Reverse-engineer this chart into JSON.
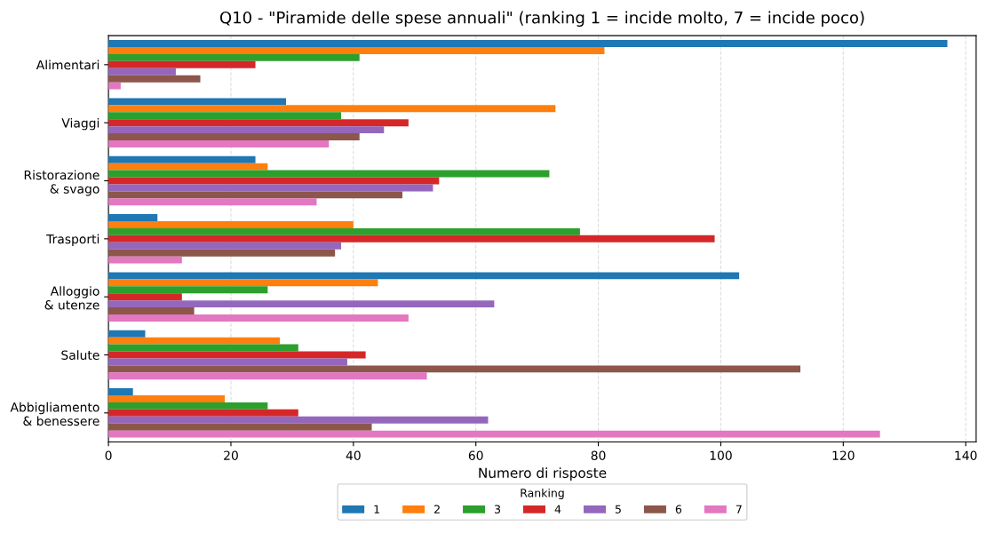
{
  "chart_data": {
    "type": "bar",
    "orientation": "horizontal",
    "title": "Q10 - \"Piramide delle spese annuali\" (ranking 1 = incide molto, 7 = incide poco)",
    "xlabel": "Numero di risposte",
    "legend_title": "Ranking",
    "categories": [
      "Alimentari",
      "Viaggi",
      "Ristorazione\n& svago",
      "Trasporti",
      "Alloggio\n& utenze",
      "Salute",
      "Abbigliamento\n& benessere"
    ],
    "series": [
      {
        "name": "1",
        "color": "#1f77b4",
        "values": [
          137,
          29,
          24,
          8,
          103,
          6,
          4
        ]
      },
      {
        "name": "2",
        "color": "#ff7f0e",
        "values": [
          81,
          73,
          26,
          40,
          44,
          28,
          19
        ]
      },
      {
        "name": "3",
        "color": "#2ca02c",
        "values": [
          41,
          38,
          72,
          77,
          26,
          31,
          26
        ]
      },
      {
        "name": "4",
        "color": "#d62728",
        "values": [
          24,
          49,
          54,
          99,
          12,
          42,
          31
        ]
      },
      {
        "name": "5",
        "color": "#9467bd",
        "values": [
          11,
          45,
          53,
          38,
          63,
          39,
          62
        ]
      },
      {
        "name": "6",
        "color": "#8c564b",
        "values": [
          15,
          41,
          48,
          37,
          14,
          113,
          43
        ]
      },
      {
        "name": "7",
        "color": "#e377c2",
        "values": [
          2,
          36,
          34,
          12,
          49,
          52,
          126
        ]
      }
    ],
    "xlim": [
      0,
      141.7
    ],
    "xticks": [
      0,
      20,
      40,
      60,
      80,
      100,
      120,
      140
    ],
    "grid": "x",
    "legend": "bottom"
  }
}
